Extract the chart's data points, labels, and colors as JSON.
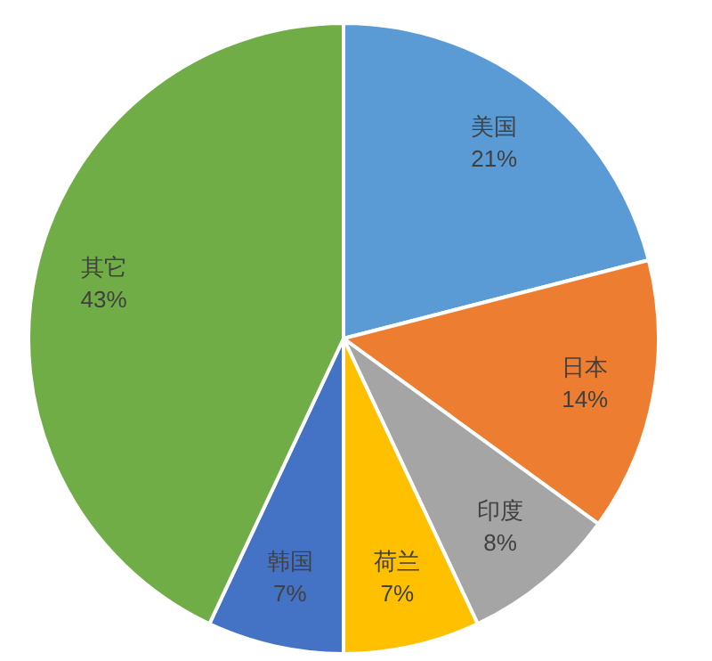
{
  "chart_data": {
    "type": "pie",
    "categories": [
      "美国",
      "日本",
      "印度",
      "荷兰",
      "韩国",
      "其它"
    ],
    "values": [
      21,
      14,
      8,
      7,
      7,
      43
    ],
    "value_labels": [
      "21%",
      "14%",
      "8%",
      "7%",
      "7%",
      "43%"
    ],
    "colors": [
      "#5b9bd5",
      "#ed7d31",
      "#a5a5a5",
      "#ffc000",
      "#4472c4",
      "#70ad47"
    ],
    "legend": false
  }
}
